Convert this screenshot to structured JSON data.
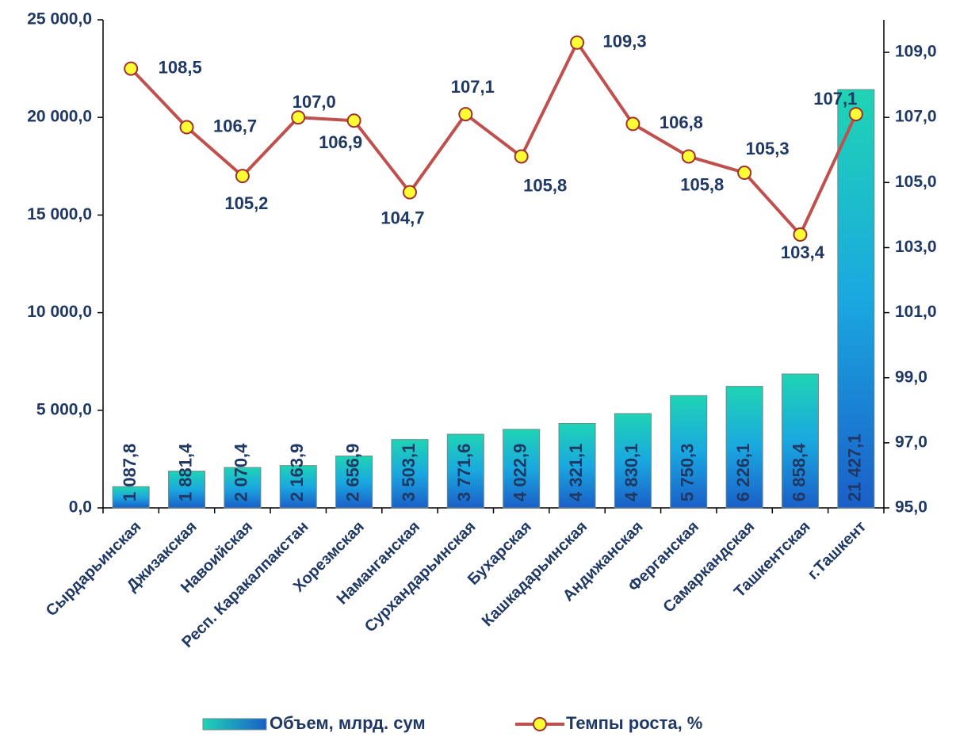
{
  "chart_data": {
    "type": "bar_line",
    "categories": [
      "Сырдарьинская",
      "Джизакская",
      "Навоийская",
      "Респ. Каракалпакстан",
      "Хорезмская",
      "Наманганская",
      "Сурхандарьинская",
      "Бухарская",
      "Кашкадарьинская",
      "Андижанская",
      "Ферганская",
      "Самаркандская",
      "Ташкентская",
      "г.Ташкент"
    ],
    "series": [
      {
        "name": "Объем, млрд. сум",
        "type": "bar",
        "color": "#1a8fd8",
        "values": [
          1087.8,
          1881.4,
          2070.4,
          2163.9,
          2656.9,
          3503.1,
          3771.6,
          4022.9,
          4321.1,
          4830.1,
          5750.3,
          6226.1,
          6858.4,
          21427.1
        ],
        "value_labels": [
          "1 087,8",
          "1 881,4",
          "2 070,4",
          "2 163,9",
          "2 656,9",
          "3 503,1",
          "3 771,6",
          "4 022,9",
          "4 321,1",
          "4 830,1",
          "5 750,3",
          "6 226,1",
          "6 858,4",
          "21 427,1"
        ]
      },
      {
        "name": "Темпы роста, %",
        "type": "line",
        "axis": "y2",
        "color": "#c0504d",
        "values": [
          108.5,
          106.7,
          105.2,
          107.0,
          106.9,
          104.7,
          107.1,
          105.8,
          109.3,
          106.8,
          105.8,
          105.3,
          103.4,
          107.1
        ],
        "value_labels": [
          "108,5",
          "106,7",
          "105,2",
          "107,0",
          "106,9",
          "104,7",
          "107,1",
          "105,8",
          "109,3",
          "106,8",
          "105,8",
          "105,3",
          "103,4",
          "107,1"
        ]
      }
    ],
    "ylim": [
      0,
      25000
    ],
    "yticks": [
      {
        "value": 0,
        "label": "0,0"
      },
      {
        "value": 5000,
        "label": "5 000,0"
      },
      {
        "value": 10000,
        "label": "10 000,0"
      },
      {
        "value": 15000,
        "label": "15 000,0"
      },
      {
        "value": 20000,
        "label": "20 000,0"
      },
      {
        "value": 25000,
        "label": "25 000,0"
      }
    ],
    "y2lim": [
      95,
      110
    ],
    "y2ticks": [
      {
        "value": 95,
        "label": "95,0"
      },
      {
        "value": 97,
        "label": "97,0"
      },
      {
        "value": 99,
        "label": "99,0"
      },
      {
        "value": 101,
        "label": "101,0"
      },
      {
        "value": 103,
        "label": "103,0"
      },
      {
        "value": 105,
        "label": "105,0"
      },
      {
        "value": 107,
        "label": "107,0"
      },
      {
        "value": 109,
        "label": "109,0"
      }
    ],
    "grid": false,
    "legend": "bottom"
  }
}
